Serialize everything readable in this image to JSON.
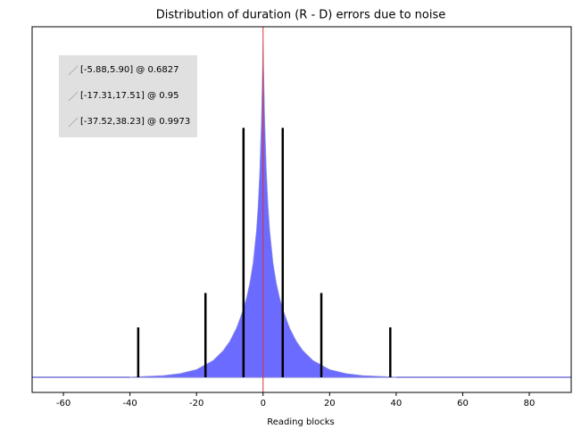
{
  "chart_data": {
    "type": "area",
    "title": "Distribution of duration (R - D) errors due to noise",
    "x_label": "Reading blocks",
    "x": [
      -40,
      -30,
      -25,
      -20,
      -15,
      -12,
      -10,
      -8,
      -6,
      -5,
      -4,
      -3,
      -2,
      -1.5,
      -1,
      -0.5,
      0,
      0.5,
      1,
      1.5,
      2,
      3,
      4,
      5,
      6,
      8,
      10,
      12,
      15,
      20,
      25,
      30,
      40
    ],
    "values": [
      0.001,
      0.005,
      0.011,
      0.023,
      0.05,
      0.079,
      0.107,
      0.146,
      0.2,
      0.235,
      0.279,
      0.34,
      0.436,
      0.509,
      0.613,
      0.766,
      1.0,
      0.766,
      0.613,
      0.509,
      0.436,
      0.34,
      0.279,
      0.235,
      0.2,
      0.146,
      0.107,
      0.079,
      0.05,
      0.023,
      0.011,
      0.005,
      0.001
    ],
    "color": "#6b6bff",
    "center": 0,
    "center_color": "#e03030",
    "intervals": [
      {
        "label": "[-5.88,5.90] @ 0.6827",
        "lo": -5.88,
        "hi": 5.9,
        "height": 0.74
      },
      {
        "label": "[-17.31,17.51] @ 0.95",
        "lo": -17.31,
        "hi": 17.51,
        "height": 0.25
      },
      {
        "label": "[-37.52,38.23] @ 0.9973",
        "lo": -37.52,
        "hi": 38.23,
        "height": 0.148
      }
    ],
    "xlim": [
      -69.4,
      92.6
    ],
    "xticks": [
      -60,
      -40,
      -20,
      0,
      20,
      40,
      60,
      80
    ],
    "ylim": [
      -0.045,
      1.04
    ]
  }
}
